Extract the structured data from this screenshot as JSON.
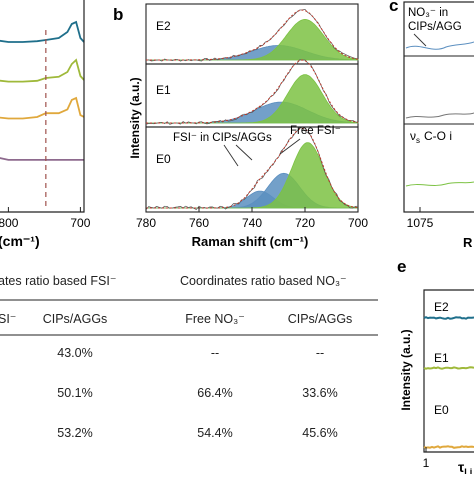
{
  "panels": {
    "a": {
      "xlabel_tail": "(cm⁻¹)",
      "xticks": [
        {
          "v": 800,
          "label": "800"
        },
        {
          "v": 700,
          "label": "700"
        }
      ],
      "dashed_x": 748
    },
    "b": {
      "label": "b",
      "xlabel": "Raman shift (cm⁻¹)",
      "ylabel": "Intensity (a.u.)",
      "xticks": [
        {
          "v": 780,
          "label": "780"
        },
        {
          "v": 760,
          "label": "760"
        },
        {
          "v": 740,
          "label": "740"
        },
        {
          "v": 720,
          "label": "720"
        },
        {
          "v": 700,
          "label": "700"
        }
      ],
      "sub": [
        "E2",
        "E1",
        "E0"
      ],
      "annot_fsi_cips": "FSI⁻ in CIPs/AGGs",
      "annot_free_fsi": "Free FSI⁻"
    },
    "c": {
      "label": "c",
      "annot_no3": "NO₃⁻ in",
      "annot_cips": "CIPs/AGG",
      "annot_vs": "ν",
      "annot_vs_sub": "s",
      "annot_vs_tail": "C-O i",
      "xtick": "1075",
      "xlabel_frag": "R"
    },
    "d": {
      "header_fsi": "ates ratio based FSI⁻",
      "header_no3": "Coordinates ratio based NO₃⁻",
      "col_fsi_frag": "SI⁻",
      "col_cips1": "CIPs/AGGs",
      "col_free_no3": "Free NO₃⁻",
      "col_cips2": "CIPs/AGGs",
      "rows": [
        {
          "cips_fsi": "43.0%",
          "free_no3": "--",
          "cips_no3": "--"
        },
        {
          "cips_fsi": "50.1%",
          "free_no3": "66.4%",
          "cips_no3": "33.6%"
        },
        {
          "cips_fsi": "53.2%",
          "free_no3": "54.4%",
          "cips_no3": "45.6%"
        }
      ]
    },
    "e": {
      "label": "e",
      "ylabel": "Intensity (a.u.)",
      "curves": [
        "E2",
        "E1",
        "E0"
      ],
      "xtick": "1",
      "xlabel_tau": "τ",
      "xlabel_sub": "Li"
    }
  },
  "colors": {
    "E2": "#1f6f8b",
    "E1": "#9fb93a",
    "E0": "#e0a83c",
    "purple": "#8e6a8e",
    "blue_fill": "#5b8fc0",
    "green_fill": "#7cc243",
    "fit_line": "#c0392b",
    "dashed": "#a0524d"
  },
  "chart_data": [
    {
      "type": "line",
      "panel": "a",
      "xlabel": "(cm⁻¹)",
      "xlim": [
        820,
        695
      ],
      "series": [
        {
          "x": [
            820,
            800,
            780,
            760,
            748,
            730,
            718,
            712,
            706,
            700,
            695
          ],
          "y": [
            0.55,
            0.5,
            0.5,
            0.52,
            0.55,
            0.6,
            0.75,
            0.95,
            1.0,
            0.6,
            0.5
          ]
        },
        {
          "x": [
            820,
            800,
            780,
            760,
            748,
            730,
            718,
            712,
            706,
            700,
            695
          ],
          "y": [
            0.5,
            0.46,
            0.46,
            0.48,
            0.55,
            0.58,
            0.7,
            0.9,
            1.0,
            0.6,
            0.5
          ]
        },
        {
          "x": [
            820,
            800,
            780,
            760,
            748,
            730,
            718,
            712,
            706,
            700,
            695
          ],
          "y": [
            0.5,
            0.46,
            0.46,
            0.5,
            0.6,
            0.6,
            0.7,
            0.95,
            1.0,
            0.55,
            0.5
          ]
        },
        {
          "x": [
            820,
            800,
            780,
            760,
            748,
            730,
            718,
            712,
            706,
            700,
            695
          ],
          "y": [
            0.6,
            0.46,
            0.46,
            0.46,
            0.46,
            0.46,
            0.46,
            0.46,
            0.46,
            0.46,
            0.46
          ]
        }
      ]
    },
    {
      "type": "area",
      "panel": "b",
      "xlabel": "Raman shift (cm⁻¹)",
      "ylabel": "Intensity (a.u.)",
      "xlim": [
        780,
        700
      ],
      "subplots": [
        {
          "name": "E2",
          "peaks": [
            {
              "label": "CIPs/AGGs",
              "center": 730,
              "amp": 0.28,
              "hw": 10
            },
            {
              "label": "Free FSI⁻",
              "center": 720,
              "amp": 0.78,
              "hw": 7
            }
          ]
        },
        {
          "name": "E1",
          "peaks": [
            {
              "label": "CIPs/AGGs",
              "center": 729,
              "amp": 0.38,
              "hw": 10
            },
            {
              "label": "Free FSI⁻",
              "center": 720,
              "amp": 0.88,
              "hw": 6.5
            }
          ]
        },
        {
          "name": "E0",
          "peaks": [
            {
              "label": "CIPs/AGGs",
              "center": 737,
              "amp": 0.22,
              "hw": 5
            },
            {
              "label": "CIPs/AGGs",
              "center": 728,
              "amp": 0.45,
              "hw": 6
            },
            {
              "label": "Free FSI⁻",
              "center": 719,
              "amp": 0.85,
              "hw": 6
            }
          ]
        }
      ]
    },
    {
      "type": "table",
      "panel": "d",
      "columns": [
        "SI⁻",
        "CIPs/AGGs",
        "Free NO₃⁻",
        "CIPs/AGGs"
      ],
      "rows": [
        [
          "",
          "43.0%",
          "--",
          "--"
        ],
        [
          "",
          "50.1%",
          "66.4%",
          "33.6%"
        ],
        [
          "",
          "53.2%",
          "54.4%",
          "45.6%"
        ]
      ]
    },
    {
      "type": "line",
      "panel": "e",
      "ylabel": "Intensity (a.u.)",
      "series": [
        {
          "name": "E2",
          "level": 0.82
        },
        {
          "name": "E1",
          "level": 0.5
        },
        {
          "name": "E0",
          "level": 0.18
        }
      ]
    }
  ]
}
